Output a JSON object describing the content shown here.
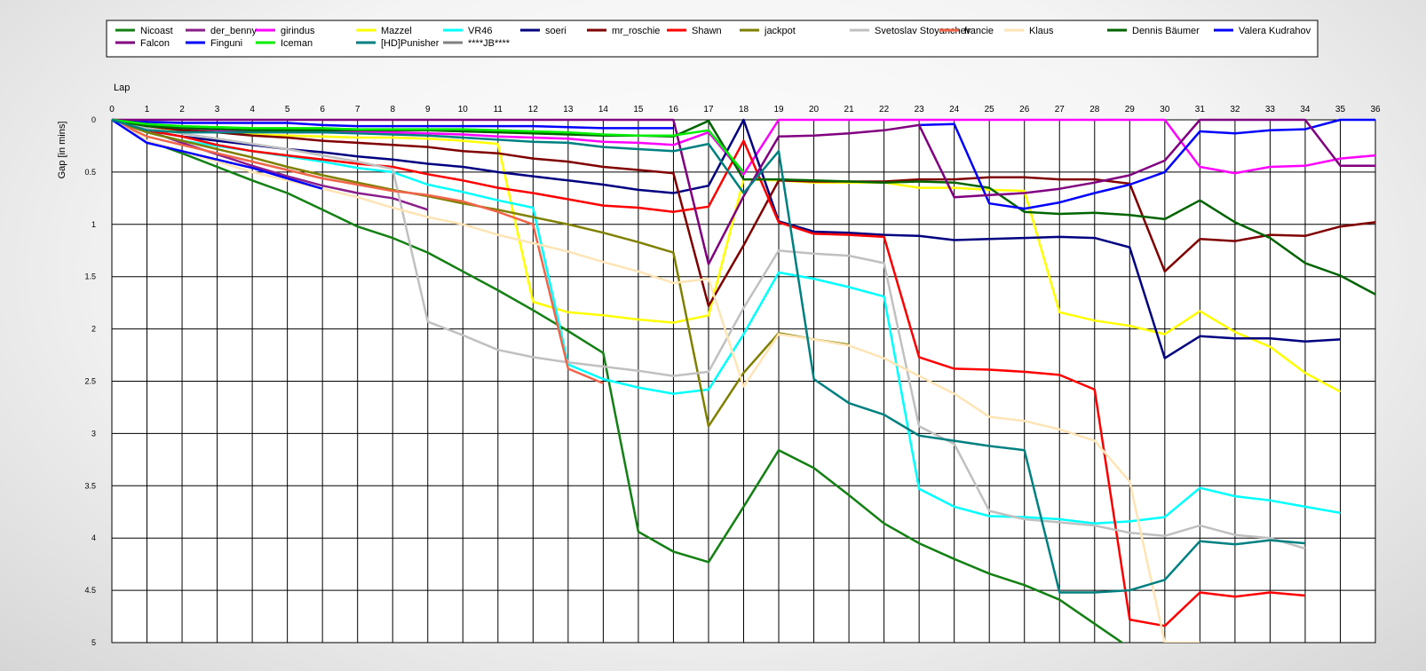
{
  "chart_data": {
    "type": "line",
    "xlabel": "Lap",
    "ylabel": "Gap [in mins]",
    "xlim": [
      0,
      36
    ],
    "ylim": [
      0,
      5
    ],
    "y_inverted": true,
    "grid": true,
    "legend_position": "top",
    "x_ticks": [
      0,
      1,
      2,
      3,
      4,
      5,
      6,
      7,
      8,
      9,
      10,
      11,
      12,
      13,
      14,
      15,
      16,
      17,
      18,
      19,
      20,
      21,
      22,
      23,
      24,
      25,
      26,
      27,
      28,
      29,
      30,
      31,
      32,
      33,
      34,
      35,
      36
    ],
    "y_ticks": [
      0,
      0.5,
      1,
      1.5,
      2,
      2.5,
      3,
      3.5,
      4,
      4.5,
      5
    ],
    "series": [
      {
        "name": "Nicoast",
        "color": "#128012",
        "values": [
          0,
          0.2,
          0.32,
          0.45,
          0.58,
          0.7,
          0.86,
          1.02,
          1.13,
          1.27,
          1.45,
          1.63,
          1.82,
          2.02,
          2.23,
          3.94,
          4.13,
          4.23,
          3.7,
          3.16,
          3.33,
          3.59,
          3.86,
          4.05,
          4.2,
          4.34,
          4.45,
          4.59,
          4.82,
          5.05,
          null,
          null,
          null,
          null,
          null,
          null,
          null
        ]
      },
      {
        "name": "der_benny",
        "color": "#8a1e8a",
        "values": [
          0,
          0.1,
          0.22,
          0.33,
          0.44,
          0.54,
          0.63,
          0.7,
          0.75,
          0.86,
          null,
          null,
          null,
          null,
          null,
          null,
          null,
          null,
          null,
          null,
          null,
          null,
          null,
          null,
          null,
          null,
          null,
          null,
          null,
          null,
          null,
          null,
          null,
          null,
          null,
          null,
          null
        ]
      },
      {
        "name": "girindus",
        "color": "#ff00ff",
        "values": [
          0,
          0.06,
          0.08,
          0.1,
          0.11,
          0.12,
          0.12,
          0.12,
          0.12,
          0.13,
          0.14,
          0.16,
          0.17,
          0.18,
          0.21,
          0.22,
          0.24,
          0.12,
          0.52,
          0,
          0,
          0,
          0,
          0,
          0,
          0,
          0,
          0,
          0,
          0,
          0,
          0.45,
          0.51,
          0.45,
          0.44,
          0.37,
          0.34
        ]
      },
      {
        "name": "Mazzel",
        "color": "#ffff00",
        "values": [
          0,
          0.08,
          0.1,
          0.12,
          0.14,
          0.15,
          0.16,
          0.17,
          0.17,
          0.18,
          0.2,
          0.23,
          1.74,
          1.84,
          1.87,
          1.91,
          1.94,
          1.87,
          0.57,
          0.58,
          0.6,
          0.6,
          0.6,
          0.65,
          0.65,
          0.67,
          0.68,
          1.84,
          1.92,
          1.97,
          2.05,
          1.83,
          2.03,
          2.17,
          2.42,
          2.6,
          null
        ]
      },
      {
        "name": "VR46",
        "color": "#00ffff",
        "values": [
          0,
          0.12,
          0.2,
          0.25,
          0.3,
          0.35,
          0.4,
          0.46,
          0.5,
          0.62,
          0.69,
          0.77,
          0.84,
          2.34,
          2.48,
          2.56,
          2.62,
          2.58,
          2.05,
          1.46,
          1.52,
          1.6,
          1.69,
          3.53,
          3.7,
          3.79,
          3.8,
          3.82,
          3.86,
          3.84,
          3.8,
          3.52,
          3.6,
          3.64,
          3.7,
          3.76,
          null
        ]
      },
      {
        "name": "soeri",
        "color": "#000080",
        "values": [
          0,
          0.1,
          0.16,
          0.2,
          0.24,
          0.28,
          0.31,
          0.35,
          0.38,
          0.42,
          0.45,
          0.5,
          0.54,
          0.58,
          0.62,
          0.67,
          0.7,
          0.63,
          0,
          0.97,
          1.07,
          1.08,
          1.1,
          1.11,
          1.15,
          1.14,
          1.13,
          1.12,
          1.13,
          1.22,
          2.28,
          2.07,
          2.09,
          2.09,
          2.12,
          2.1,
          null
        ]
      },
      {
        "name": "mr_roschie",
        "color": "#800000",
        "values": [
          0,
          0.06,
          0.1,
          0.12,
          0.15,
          0.17,
          0.2,
          0.22,
          0.24,
          0.26,
          0.3,
          0.32,
          0.37,
          0.4,
          0.45,
          0.48,
          0.51,
          1.78,
          1.2,
          0.58,
          0.59,
          0.59,
          0.59,
          0.57,
          0.57,
          0.55,
          0.55,
          0.57,
          0.57,
          0.61,
          1.45,
          1.14,
          1.16,
          1.1,
          1.11,
          1.02,
          0.98
        ]
      },
      {
        "name": "Shawn",
        "color": "#ff0000",
        "values": [
          0,
          0.1,
          0.16,
          0.24,
          0.3,
          0.34,
          0.38,
          0.42,
          0.45,
          0.52,
          0.58,
          0.65,
          0.7,
          0.76,
          0.82,
          0.84,
          0.88,
          0.83,
          0.2,
          0.98,
          1.09,
          1.1,
          1.12,
          2.27,
          2.38,
          2.39,
          2.41,
          2.44,
          2.58,
          4.78,
          4.84,
          4.52,
          4.56,
          4.52,
          4.55,
          null,
          null
        ]
      },
      {
        "name": "jackpot",
        "color": "#808000",
        "values": [
          0,
          0.12,
          0.2,
          0.28,
          0.36,
          0.45,
          0.53,
          0.6,
          0.67,
          0.73,
          0.8,
          0.86,
          0.93,
          1,
          1.08,
          1.17,
          1.27,
          2.93,
          2.42,
          2.04,
          2.1,
          2.15,
          null,
          null,
          null,
          null,
          null,
          null,
          null,
          null,
          null,
          null,
          null,
          null,
          null,
          null,
          null
        ]
      },
      {
        "name": "Svetoslav Stoyanchev",
        "color": "#c0c0c0",
        "values": [
          0,
          0.08,
          0.13,
          0.18,
          0.23,
          0.28,
          0.34,
          0.4,
          0.47,
          1.93,
          2.06,
          2.2,
          2.27,
          2.32,
          2.36,
          2.4,
          2.45,
          2.41,
          1.8,
          1.25,
          1.28,
          1.3,
          1.37,
          2.93,
          3.1,
          3.74,
          3.82,
          3.85,
          3.88,
          3.95,
          3.98,
          3.88,
          3.97,
          4.0,
          4.1,
          null,
          null
        ]
      },
      {
        "name": "francie",
        "color": "#f06449",
        "values": [
          0,
          0.16,
          0.24,
          0.32,
          0.4,
          0.48,
          0.56,
          0.62,
          0.68,
          0.72,
          0.78,
          0.88,
          1.0,
          2.38,
          2.52,
          null,
          null,
          null,
          null,
          null,
          null,
          null,
          null,
          null,
          null,
          null,
          null,
          null,
          null,
          null,
          null,
          null,
          null,
          null,
          null,
          null,
          null
        ]
      },
      {
        "name": "Klaus",
        "color": "#ffe4b5",
        "values": [
          0,
          0.2,
          0.3,
          0.4,
          0.5,
          0.58,
          0.66,
          0.74,
          0.84,
          0.93,
          1.0,
          1.1,
          1.18,
          1.26,
          1.36,
          1.45,
          1.56,
          1.52,
          2.55,
          2.05,
          2.1,
          2.16,
          2.28,
          2.45,
          2.62,
          2.84,
          2.88,
          2.96,
          3.07,
          3.46,
          5.0,
          5.0,
          null,
          null,
          null,
          null,
          null
        ]
      },
      {
        "name": "Dennis Bäumer",
        "color": "#006400",
        "values": [
          0,
          0.06,
          0.08,
          0.09,
          0.1,
          0.1,
          0.1,
          0.1,
          0.1,
          0.1,
          0.11,
          0.12,
          0.13,
          0.14,
          0.15,
          0.15,
          0.16,
          0.01,
          0.57,
          0.57,
          0.58,
          0.59,
          0.6,
          0.59,
          0.6,
          0.65,
          0.88,
          0.9,
          0.89,
          0.91,
          0.95,
          0.77,
          0.98,
          1.13,
          1.37,
          1.49,
          1.67
        ]
      },
      {
        "name": "Valera Kudrahov",
        "color": "#0000ff",
        "values": [
          0,
          0.02,
          0.03,
          0.03,
          0.03,
          0.03,
          0.05,
          0.06,
          0.06,
          0.06,
          0.06,
          0.06,
          0.06,
          0.07,
          0.08,
          0.08,
          0.08,
          null,
          null,
          null,
          null,
          null,
          null,
          0.05,
          0.04,
          0.8,
          0.85,
          0.79,
          0.7,
          0.62,
          0.5,
          0.11,
          0.13,
          0.1,
          0.09,
          0,
          0
        ]
      },
      {
        "name": "Falcon",
        "color": "#800080",
        "values": [
          0,
          0,
          0,
          0,
          0,
          0,
          0,
          0,
          0,
          0,
          0,
          0,
          0,
          0,
          0,
          0,
          0,
          1.38,
          0.73,
          0.16,
          0.15,
          0.13,
          0.1,
          0.05,
          0.74,
          0.72,
          0.7,
          0.66,
          0.6,
          0.53,
          0.39,
          0,
          0,
          0,
          0,
          0.44,
          0.44
        ]
      },
      {
        "name": "Finguni",
        "color": "#0000ff",
        "values": [
          0,
          0.22,
          0.3,
          0.38,
          0.46,
          0.56,
          0.66,
          null,
          null,
          null,
          null,
          null,
          null,
          null,
          null,
          null,
          null,
          null,
          null,
          null,
          null,
          null,
          null,
          null,
          null,
          null,
          null,
          null,
          null,
          null,
          null,
          null,
          null,
          null,
          null,
          null,
          null
        ]
      },
      {
        "name": "Iceman",
        "color": "#00ee00",
        "values": [
          0,
          0.04,
          0.06,
          0.07,
          0.08,
          0.08,
          0.08,
          0.09,
          0.09,
          0.09,
          0.09,
          0.1,
          0.11,
          0.12,
          0.14,
          0.15,
          0.15,
          0.1,
          0.5,
          null,
          null,
          null,
          null,
          null,
          null,
          null,
          null,
          null,
          null,
          null,
          null,
          null,
          null,
          null,
          null,
          null,
          null
        ]
      },
      {
        "name": "[HD]Punisher",
        "color": "#008080",
        "values": [
          0,
          0.1,
          0.12,
          0.12,
          0.12,
          0.12,
          0.12,
          0.13,
          0.14,
          0.15,
          0.17,
          0.19,
          0.21,
          0.22,
          0.26,
          0.28,
          0.3,
          0.23,
          0.7,
          0.3,
          2.48,
          2.71,
          2.82,
          3.02,
          3.07,
          3.12,
          3.16,
          4.52,
          4.52,
          4.5,
          4.4,
          4.03,
          4.06,
          4.02,
          4.05,
          null,
          null
        ]
      },
      {
        "name": "****JB****",
        "color": "#808080",
        "values": [
          0,
          null,
          null,
          null,
          null,
          null,
          null,
          null,
          null,
          null,
          null,
          null,
          null,
          null,
          null,
          null,
          null,
          null,
          null,
          null,
          null,
          null,
          null,
          null,
          null,
          null,
          null,
          null,
          null,
          null,
          null,
          null,
          null,
          null,
          null,
          null,
          null
        ]
      }
    ]
  }
}
